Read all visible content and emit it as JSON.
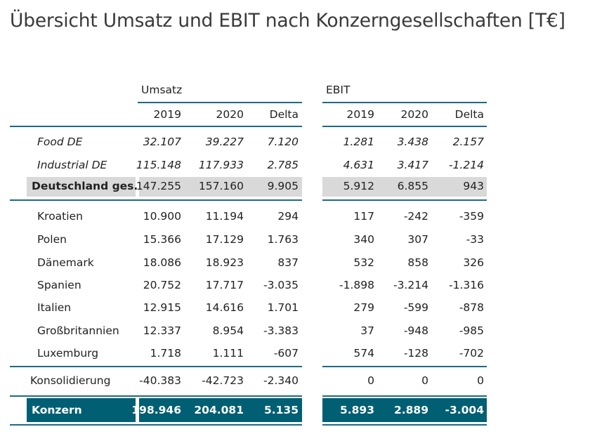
{
  "title": "Übersicht Umsatz und EBIT nach Konzerngesellschaften [T€]",
  "groups": {
    "umsatz": "Umsatz",
    "ebit": "EBIT"
  },
  "columns": {
    "y2019": "2019",
    "y2020": "2020",
    "delta": "Delta"
  },
  "rows": [
    {
      "label": "Food DE",
      "style": "italic",
      "u": [
        "32.107",
        "39.227",
        "7.120"
      ],
      "e": [
        "1.281",
        "3.438",
        "2.157"
      ]
    },
    {
      "label": "Industrial DE",
      "style": "italic",
      "u": [
        "115.148",
        "117.933",
        "2.785"
      ],
      "e": [
        "4.631",
        "3.417",
        "-1.214"
      ]
    },
    {
      "label": "Deutschland ges.",
      "style": "subtotal",
      "u": [
        "147.255",
        "157.160",
        "9.905"
      ],
      "e": [
        "5.912",
        "6.855",
        "943"
      ]
    },
    {
      "label": "Kroatien",
      "style": "normal",
      "u": [
        "10.900",
        "11.194",
        "294"
      ],
      "e": [
        "117",
        "-242",
        "-359"
      ]
    },
    {
      "label": "Polen",
      "style": "normal",
      "u": [
        "15.366",
        "17.129",
        "1.763"
      ],
      "e": [
        "340",
        "307",
        "-33"
      ]
    },
    {
      "label": "Dänemark",
      "style": "normal",
      "u": [
        "18.086",
        "18.923",
        "837"
      ],
      "e": [
        "532",
        "858",
        "326"
      ]
    },
    {
      "label": "Spanien",
      "style": "normal",
      "u": [
        "20.752",
        "17.717",
        "-3.035"
      ],
      "e": [
        "-1.898",
        "-3.214",
        "-1.316"
      ]
    },
    {
      "label": "Italien",
      "style": "normal",
      "u": [
        "12.915",
        "14.616",
        "1.701"
      ],
      "e": [
        "279",
        "-599",
        "-878"
      ]
    },
    {
      "label": "Großbritannien",
      "style": "normal",
      "u": [
        "12.337",
        "8.954",
        "-3.383"
      ],
      "e": [
        "37",
        "-948",
        "-985"
      ]
    },
    {
      "label": "Luxemburg",
      "style": "normal",
      "u": [
        "1.718",
        "1.111",
        "-607"
      ],
      "e": [
        "574",
        "-128",
        "-702"
      ]
    },
    {
      "label": "Konsolidierung",
      "style": "plain",
      "u": [
        "-40.383",
        "-42.723",
        "-2.340"
      ],
      "e": [
        "0",
        "0",
        "0"
      ]
    },
    {
      "label": "Konzern",
      "style": "total",
      "u": [
        "198.946",
        "204.081",
        "5.135"
      ],
      "e": [
        "5.893",
        "2.889",
        "-3.004"
      ]
    }
  ]
}
